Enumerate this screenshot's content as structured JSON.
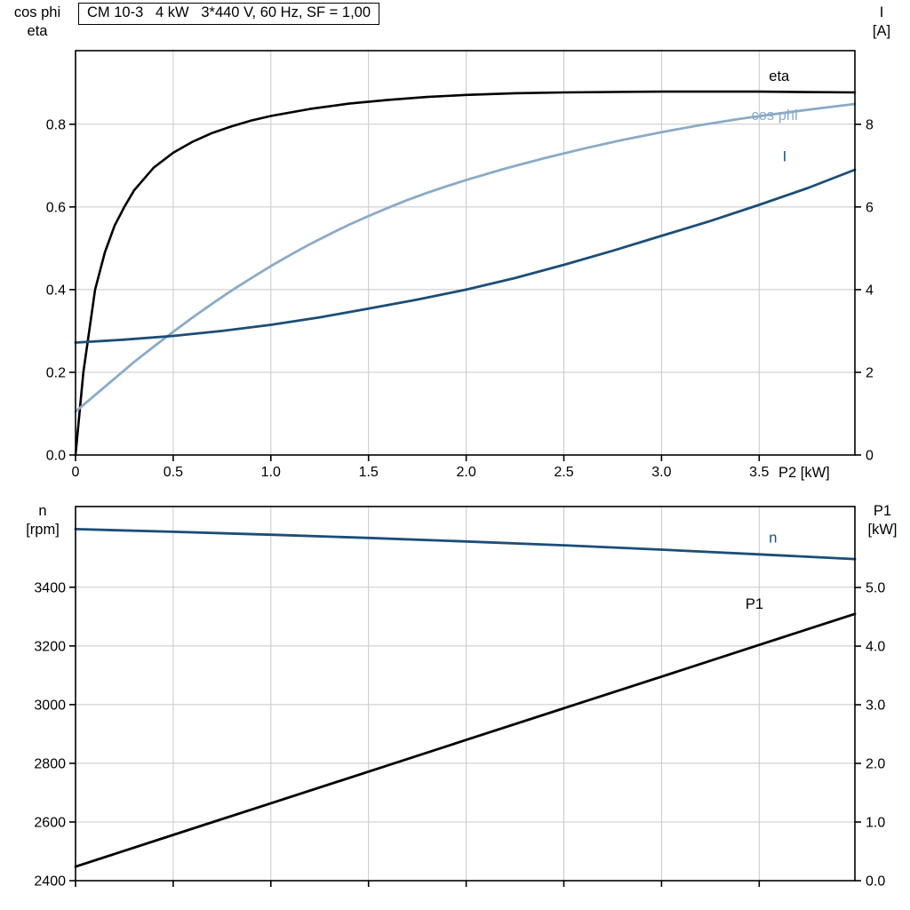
{
  "accent_colors": {
    "dark_blue": "#1b4e78",
    "light_blue": "#8aabc8",
    "black": "#000000",
    "grid": "#c8c8c8"
  },
  "chart_data": [
    {
      "type": "line",
      "title": "CM 10-3   4 kW   3*440 V, 60 Hz, SF = 1,00",
      "x_axis": {
        "label": "P2 [kW]",
        "range": [
          0,
          3.99
        ],
        "tick_values": [
          0,
          0.5,
          1,
          1.5,
          2,
          2.5,
          3,
          3.5
        ],
        "tick_labels": [
          "0",
          "0.5",
          "1.0",
          "1.5",
          "2.0",
          "2.5",
          "3.0",
          "3.5"
        ],
        "show_tick_labels": true
      },
      "left_axis": {
        "label_lines": [
          "cos phi",
          "eta"
        ],
        "range": [
          0,
          0.978
        ],
        "tick_values": [
          0,
          0.2,
          0.4,
          0.6,
          0.8
        ],
        "tick_labels": [
          "0.0",
          "0.2",
          "0.4",
          "0.6",
          "0.8"
        ]
      },
      "right_axis": {
        "label_lines": [
          "I",
          "[A]"
        ],
        "range": [
          0,
          9.78
        ],
        "tick_values": [
          0,
          2,
          4,
          6,
          8
        ],
        "tick_labels": [
          "0",
          "2",
          "4",
          "6",
          "8"
        ]
      },
      "grid": true,
      "series": [
        {
          "name": "eta",
          "color": "#000000",
          "axis": "left",
          "width": 2.6,
          "label": {
            "text": "eta",
            "x": 3.55,
            "y": 0.905
          },
          "points": [
            [
              0,
              0
            ],
            [
              0.02,
              0.1
            ],
            [
              0.04,
              0.2
            ],
            [
              0.07,
              0.3
            ],
            [
              0.1,
              0.4
            ],
            [
              0.15,
              0.49
            ],
            [
              0.2,
              0.555
            ],
            [
              0.25,
              0.6
            ],
            [
              0.3,
              0.64
            ],
            [
              0.4,
              0.695
            ],
            [
              0.5,
              0.731
            ],
            [
              0.6,
              0.758
            ],
            [
              0.7,
              0.779
            ],
            [
              0.8,
              0.795
            ],
            [
              0.9,
              0.809
            ],
            [
              1,
              0.82
            ],
            [
              1.2,
              0.837
            ],
            [
              1.4,
              0.85
            ],
            [
              1.6,
              0.859
            ],
            [
              1.8,
              0.866
            ],
            [
              2,
              0.871
            ],
            [
              2.25,
              0.875
            ],
            [
              2.5,
              0.877
            ],
            [
              2.75,
              0.878
            ],
            [
              3,
              0.879
            ],
            [
              3.5,
              0.879
            ],
            [
              3.99,
              0.877
            ]
          ]
        },
        {
          "name": "cos phi",
          "color": "#8aabc8",
          "axis": "left",
          "width": 2.8,
          "label": {
            "text": "cos phi",
            "x": 3.46,
            "y": 0.81
          },
          "points": [
            [
              0,
              0.105
            ],
            [
              0.1,
              0.145
            ],
            [
              0.2,
              0.185
            ],
            [
              0.3,
              0.225
            ],
            [
              0.4,
              0.262
            ],
            [
              0.5,
              0.298
            ],
            [
              0.6,
              0.333
            ],
            [
              0.7,
              0.366
            ],
            [
              0.8,
              0.398
            ],
            [
              0.9,
              0.428
            ],
            [
              1,
              0.457
            ],
            [
              1.1,
              0.484
            ],
            [
              1.2,
              0.51
            ],
            [
              1.3,
              0.534
            ],
            [
              1.4,
              0.557
            ],
            [
              1.5,
              0.578
            ],
            [
              1.6,
              0.598
            ],
            [
              1.7,
              0.617
            ],
            [
              1.8,
              0.634
            ],
            [
              1.9,
              0.65
            ],
            [
              2,
              0.665
            ],
            [
              2.2,
              0.693
            ],
            [
              2.4,
              0.718
            ],
            [
              2.6,
              0.741
            ],
            [
              2.8,
              0.762
            ],
            [
              3,
              0.781
            ],
            [
              3.2,
              0.798
            ],
            [
              3.4,
              0.813
            ],
            [
              3.6,
              0.826
            ],
            [
              3.8,
              0.838
            ],
            [
              3.99,
              0.849
            ]
          ]
        },
        {
          "name": "I",
          "color": "#1b4e78",
          "axis": "right",
          "width": 2.8,
          "label": {
            "text": "I",
            "x": 3.62,
            "y": 7.1
          },
          "points": [
            [
              0,
              2.72
            ],
            [
              0.25,
              2.79
            ],
            [
              0.5,
              2.88
            ],
            [
              0.75,
              3.0
            ],
            [
              1,
              3.15
            ],
            [
              1.25,
              3.33
            ],
            [
              1.5,
              3.54
            ],
            [
              1.75,
              3.76
            ],
            [
              2,
              4.0
            ],
            [
              2.25,
              4.28
            ],
            [
              2.5,
              4.6
            ],
            [
              2.75,
              4.94
            ],
            [
              3,
              5.3
            ],
            [
              3.25,
              5.66
            ],
            [
              3.5,
              6.05
            ],
            [
              3.75,
              6.46
            ],
            [
              3.99,
              6.9
            ]
          ]
        }
      ]
    },
    {
      "type": "line",
      "x_axis": {
        "label": "",
        "range": [
          0,
          3.99
        ],
        "tick_values": [
          0,
          0.5,
          1,
          1.5,
          2,
          2.5,
          3,
          3.5
        ],
        "tick_labels": [
          "",
          "",
          "",
          "",
          "",
          "",
          "",
          ""
        ],
        "show_tick_labels": false
      },
      "left_axis": {
        "label_lines": [
          "n",
          "[rpm]"
        ],
        "range": [
          2400,
          3675
        ],
        "tick_values": [
          2400,
          2600,
          2800,
          3000,
          3200,
          3400
        ],
        "tick_labels": [
          "2400",
          "2600",
          "2800",
          "3000",
          "3200",
          "3400"
        ]
      },
      "right_axis": {
        "label_lines": [
          "P1",
          "[kW]"
        ],
        "range": [
          0,
          6.38
        ],
        "tick_values": [
          0,
          1,
          2,
          3,
          4,
          5
        ],
        "tick_labels": [
          "0.0",
          "1.0",
          "2.0",
          "3.0",
          "4.0",
          "5.0"
        ]
      },
      "grid": true,
      "series": [
        {
          "name": "n",
          "color": "#1b4e78",
          "axis": "left",
          "width": 2.8,
          "label": {
            "text": "n",
            "x": 3.55,
            "y": 3552
          },
          "points": [
            [
              0,
              3598
            ],
            [
              0.5,
              3589
            ],
            [
              1,
              3579
            ],
            [
              1.5,
              3568
            ],
            [
              2,
              3556
            ],
            [
              2.5,
              3543
            ],
            [
              3,
              3528
            ],
            [
              3.5,
              3512
            ],
            [
              3.99,
              3496
            ]
          ]
        },
        {
          "name": "P1",
          "color": "#000000",
          "axis": "right",
          "width": 2.8,
          "label": {
            "text": "P1",
            "x": 3.43,
            "y": 4.64
          },
          "points": [
            [
              0,
              0.24
            ],
            [
              0.5,
              0.78
            ],
            [
              1,
              1.32
            ],
            [
              1.5,
              1.86
            ],
            [
              2,
              2.4
            ],
            [
              2.5,
              2.94
            ],
            [
              3,
              3.48
            ],
            [
              3.5,
              4.02
            ],
            [
              3.99,
              4.55
            ]
          ]
        }
      ]
    }
  ]
}
